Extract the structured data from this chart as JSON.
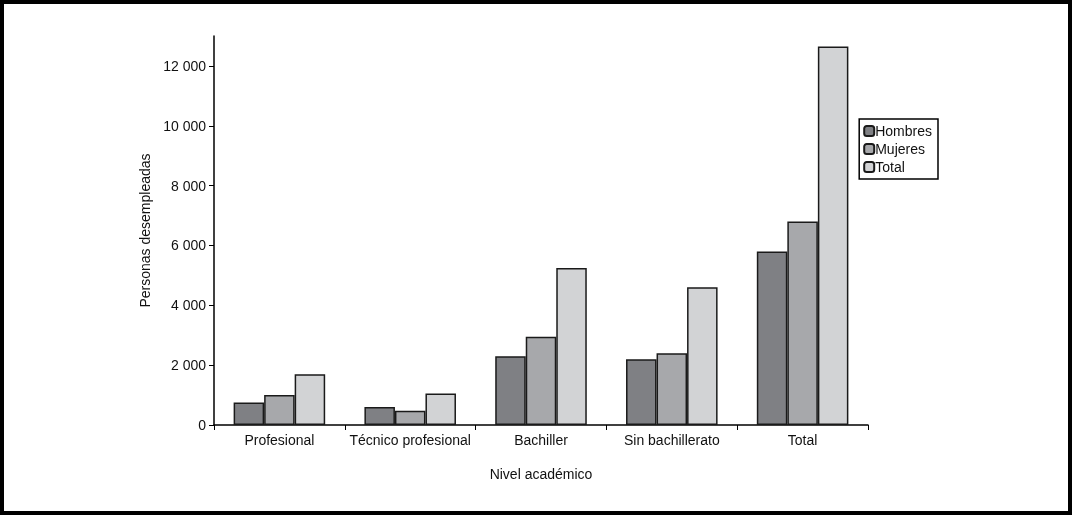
{
  "chart_data": {
    "type": "bar",
    "xlabel": "Nivel académico",
    "ylabel": "Personas desempleadas",
    "categories": [
      "Profesional",
      "Técnico profesional",
      "Bachiller",
      "Sin bachillerato",
      "Total"
    ],
    "series": [
      {
        "name": "Hombres",
        "color": "#7f8084",
        "values": [
          750,
          600,
          2300,
          2200,
          5800
        ]
      },
      {
        "name": "Mujeres",
        "color": "#a7a8ab",
        "values": [
          1000,
          480,
          2950,
          2400,
          6800
        ]
      },
      {
        "name": "Total",
        "color": "#d2d3d5",
        "values": [
          1700,
          1050,
          5250,
          4600,
          12650
        ]
      }
    ],
    "ylim": [
      0,
      13000
    ],
    "yticks": [
      0,
      {
        "value": 2000,
        "label": "2 000"
      },
      {
        "value": 4000,
        "label": "4 000"
      },
      {
        "value": 6000,
        "label": "6 000"
      },
      {
        "value": 8000,
        "label": "8 000"
      },
      {
        "value": 10000,
        "label": "10 000"
      },
      {
        "value": 12000,
        "label": "12 000"
      }
    ],
    "grid": false,
    "legend": "right"
  }
}
